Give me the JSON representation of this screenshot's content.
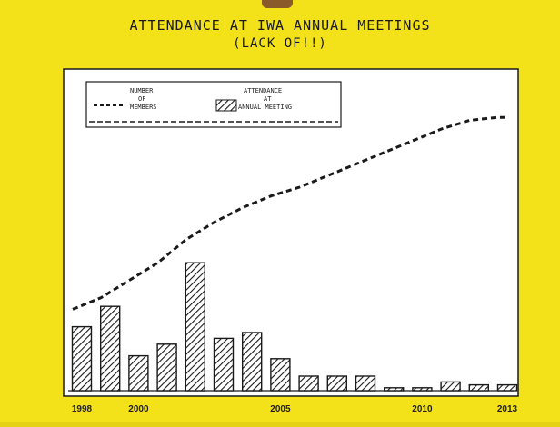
{
  "chart_data": {
    "type": "bar",
    "title": "ATTENDANCE AT IWA ANNUAL MEETINGS",
    "subtitle": "(LACK OF!!)",
    "xlabel": "",
    "ylabel": "",
    "x": [
      1998,
      1999,
      2000,
      2001,
      2002,
      2003,
      2004,
      2005,
      2006,
      2007,
      2008,
      2009,
      2010,
      2011,
      2012,
      2013
    ],
    "xtick_labels": [
      "1998",
      "2000",
      "2005",
      "2010",
      "2013"
    ],
    "ylim": [
      0,
      100
    ],
    "series": [
      {
        "name": "NUMBER OF MEMBERS",
        "kind": "line",
        "style": "dashed",
        "x": [
          1998,
          1999,
          2000,
          2001,
          2002,
          2003,
          2004,
          2005,
          2006,
          2007,
          2008,
          2009,
          2010,
          2011,
          2012,
          2013
        ],
        "values": [
          28,
          32,
          38,
          44,
          52,
          58,
          63,
          67,
          70,
          74,
          78,
          82,
          86,
          90,
          93,
          94
        ]
      },
      {
        "name": "ATTENDANCE AT ANNUAL MEETING",
        "kind": "bar",
        "style": "hatched",
        "x": [
          1998,
          1999,
          2000,
          2001,
          2002,
          2003,
          2004,
          2005,
          2006,
          2007,
          2008,
          2009,
          2010,
          2011,
          2012,
          2013
        ],
        "values": [
          22,
          29,
          12,
          16,
          44,
          18,
          20,
          11,
          5,
          5,
          5,
          1,
          1,
          3,
          2,
          2
        ]
      }
    ],
    "legend": {
      "placement": "top-left",
      "entries": [
        {
          "label_lines": [
            "NUMBER",
            "OF",
            "MEMBERS"
          ],
          "symbol": "dashed-line"
        },
        {
          "label_lines": [
            "ATTENDANCE",
            "AT",
            "ANNUAL MEETING"
          ],
          "symbol": "hatched-box"
        }
      ]
    },
    "grid": false
  },
  "colors": {
    "poster": "#f3e21a",
    "plot_bg": "#ffffff",
    "ink": "#1a1a1a",
    "wall": "#6b4a1f"
  }
}
